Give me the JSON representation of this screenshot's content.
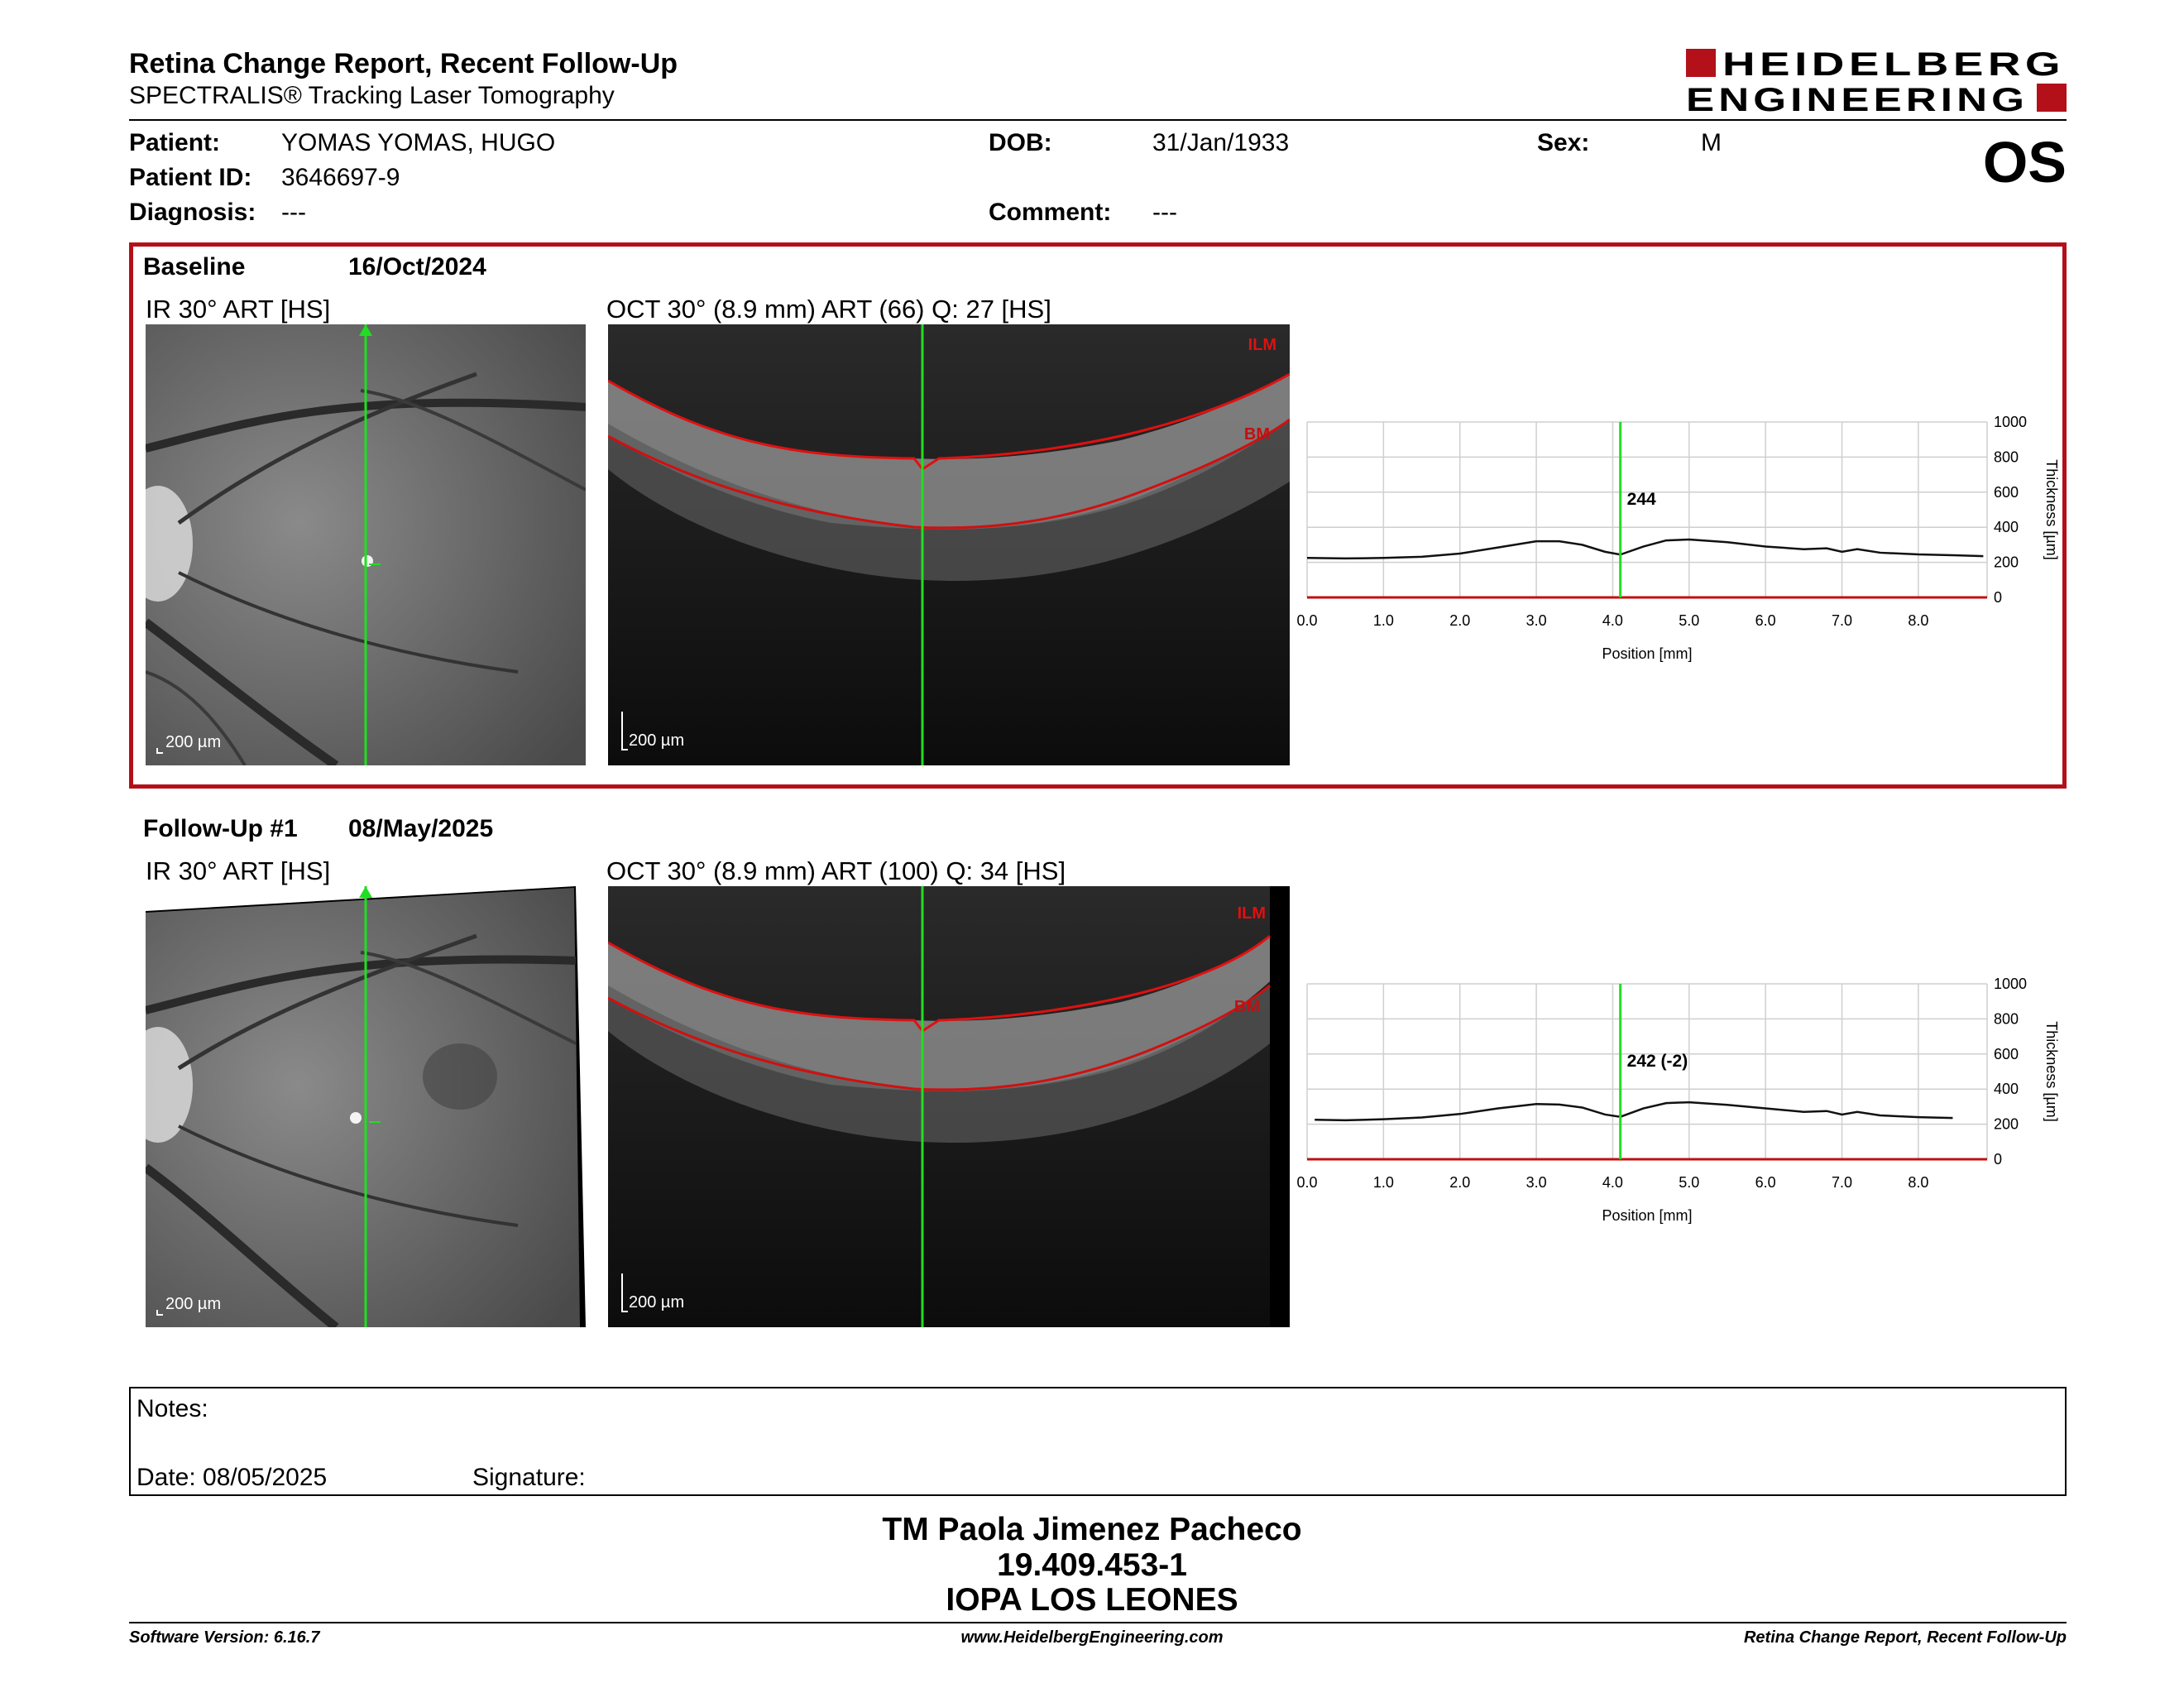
{
  "header": {
    "title": "Retina Change Report, Recent Follow-Up",
    "subtitle": "SPECTRALIS® Tracking Laser Tomography",
    "brand": "HEIDELBERG ENGINEERING",
    "eye": "OS"
  },
  "patient": {
    "patient_label": "Patient:",
    "patient_value": "YOMAS YOMAS, HUGO",
    "dob_label": "DOB:",
    "dob_value": "31/Jan/1933",
    "sex_label": "Sex:",
    "sex_value": "M",
    "id_label": "Patient ID:",
    "id_value": "3646697-9",
    "diagnosis_label": "Diagnosis:",
    "diagnosis_value": "---",
    "comment_label": "Comment:",
    "comment_value": "---"
  },
  "sections": [
    {
      "label": "Baseline",
      "date": "16/Oct/2024",
      "ir_caption": "IR 30° ART [HS]",
      "oct_caption": "OCT 30° (8.9 mm) ART (66) Q: 27 [HS]",
      "scale_ir": "200 µm",
      "scale_oct": "200 µm",
      "ilm": "ILM",
      "bm": "BM",
      "chart": {
        "type": "line",
        "thickness_label": "244",
        "marker_x": 4.1,
        "xlabel": "Position [mm]",
        "ylabel": "Thickness [µm]",
        "xlim": [
          0,
          8.9
        ],
        "ylim": [
          0,
          1000
        ],
        "x_ticks": [
          "0.0",
          "1.0",
          "2.0",
          "3.0",
          "4.0",
          "5.0",
          "6.0",
          "7.0",
          "8.0"
        ],
        "y_ticks": [
          "0",
          "200",
          "400",
          "600",
          "800",
          "1000"
        ],
        "x": [
          0.0,
          0.5,
          1.0,
          1.5,
          2.0,
          2.5,
          3.0,
          3.3,
          3.6,
          3.9,
          4.1,
          4.4,
          4.7,
          5.0,
          5.5,
          6.0,
          6.5,
          6.8,
          7.0,
          7.2,
          7.5,
          8.0,
          8.5,
          8.85
        ],
        "y": [
          225,
          222,
          225,
          232,
          250,
          285,
          320,
          320,
          300,
          260,
          244,
          290,
          325,
          330,
          315,
          290,
          275,
          280,
          260,
          275,
          255,
          245,
          240,
          235
        ]
      }
    },
    {
      "label": "Follow-Up #1",
      "date": "08/May/2025",
      "ir_caption": "IR 30° ART [HS]",
      "oct_caption": "OCT 30° (8.9 mm) ART (100) Q: 34 [HS]",
      "scale_ir": "200 µm",
      "scale_oct": "200 µm",
      "ilm": "ILM",
      "bm": "BM",
      "chart": {
        "type": "line",
        "thickness_label": "242 (-2)",
        "marker_x": 4.1,
        "xlabel": "Position [mm]",
        "ylabel": "Thickness [µm]",
        "xlim": [
          0,
          8.9
        ],
        "ylim": [
          0,
          1000
        ],
        "x_ticks": [
          "0.0",
          "1.0",
          "2.0",
          "3.0",
          "4.0",
          "5.0",
          "6.0",
          "7.0",
          "8.0"
        ],
        "y_ticks": [
          "0",
          "200",
          "400",
          "600",
          "800",
          "1000"
        ],
        "x": [
          0.1,
          0.5,
          1.0,
          1.5,
          2.0,
          2.5,
          3.0,
          3.3,
          3.6,
          3.9,
          4.1,
          4.4,
          4.7,
          5.0,
          5.5,
          6.0,
          6.5,
          6.8,
          7.0,
          7.2,
          7.5,
          8.0,
          8.45
        ],
        "y": [
          225,
          222,
          228,
          238,
          258,
          290,
          315,
          312,
          295,
          255,
          242,
          290,
          320,
          325,
          310,
          290,
          270,
          275,
          255,
          270,
          250,
          240,
          235
        ]
      }
    }
  ],
  "notes": {
    "notes_label": "Notes:",
    "date_label": "Date: 08/05/2025",
    "signature_label": "Signature:"
  },
  "signature_block": {
    "name": "TM Paola Jimenez Pacheco",
    "rut": "19.409.453-1",
    "institution": "IOPA LOS LEONES"
  },
  "footer": {
    "software": "Software Version: 6.16.7",
    "website": "www.HeidelbergEngineering.com",
    "report": "Retina Change Report, Recent Follow-Up"
  },
  "colors": {
    "accent_red": "#b3101a",
    "scan_line_green": "#22dd22",
    "segmentation_red": "#d01010"
  }
}
